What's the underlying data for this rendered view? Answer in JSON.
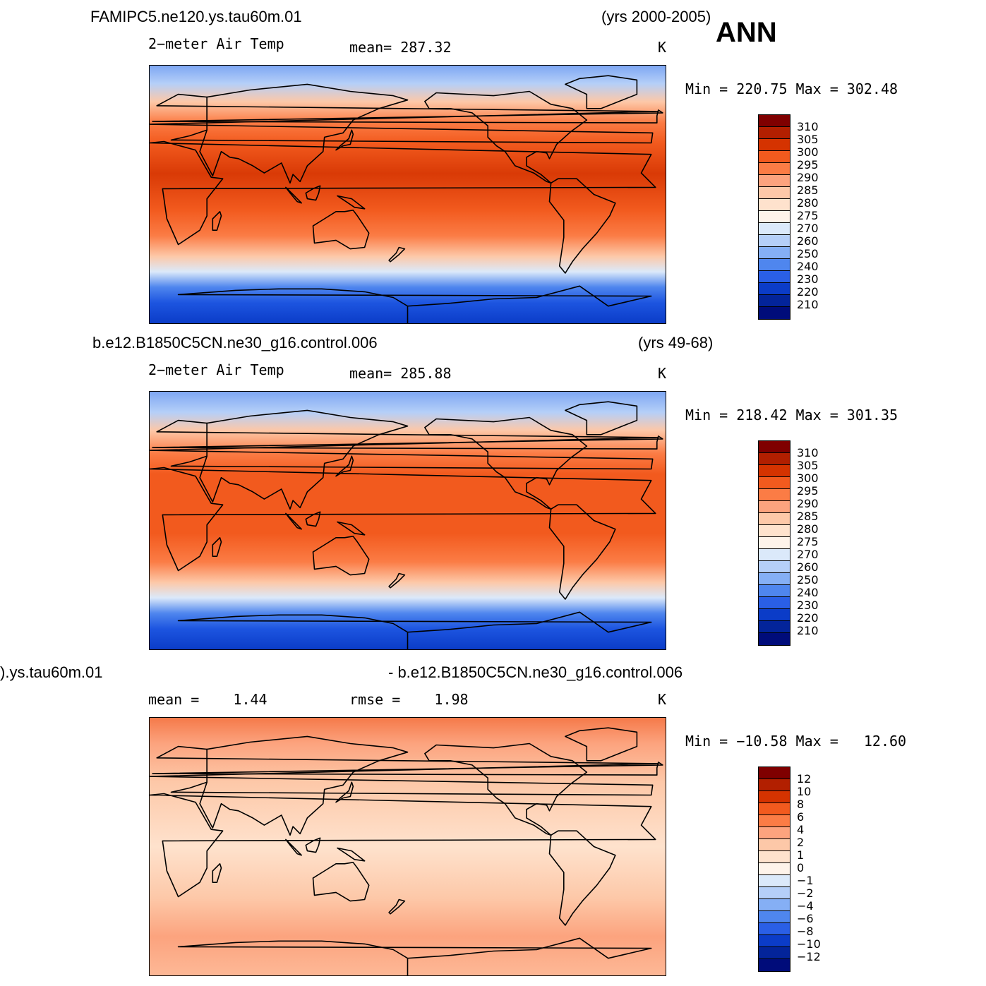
{
  "season": "ANN",
  "panels": [
    {
      "case_name": "FAMIPC5.ne120.ys.tau60m.01",
      "years": "(yrs 2000-2005)",
      "left_label": "2−meter Air Temp",
      "center_label": "mean= 287.32",
      "units": "K",
      "minmax": "Min = 220.75 Max = 302.48",
      "colorbar_labels": [
        "310",
        "305",
        "300",
        "295",
        "290",
        "285",
        "280",
        "275",
        "270",
        "260",
        "250",
        "240",
        "230",
        "220",
        "210"
      ],
      "colorbar_colors": [
        "#7f0000",
        "#b21f00",
        "#d53300",
        "#f25a1e",
        "#fb7c45",
        "#fca37e",
        "#fdc8a8",
        "#fee2cd",
        "#fef3ea",
        "#dbe9fa",
        "#b5cff8",
        "#85aff5",
        "#4f86ee",
        "#2a5fe6",
        "#0b3cc8",
        "#03249a",
        "#000c7a"
      ],
      "map_gradient": [
        {
          "offset": "0",
          "color": "#7ea7f3"
        },
        {
          "offset": "0.07",
          "color": "#b5cff8"
        },
        {
          "offset": "0.14",
          "color": "#fdc8a8"
        },
        {
          "offset": "0.22",
          "color": "#fb7c45"
        },
        {
          "offset": "0.30",
          "color": "#f25a1e"
        },
        {
          "offset": "0.42",
          "color": "#d93a06"
        },
        {
          "offset": "0.56",
          "color": "#f25a1e"
        },
        {
          "offset": "0.66",
          "color": "#fb7c45"
        },
        {
          "offset": "0.74",
          "color": "#fdc8a8"
        },
        {
          "offset": "0.80",
          "color": "#dbe9fa"
        },
        {
          "offset": "0.86",
          "color": "#4f86ee"
        },
        {
          "offset": "0.92",
          "color": "#1d55e0"
        },
        {
          "offset": "1",
          "color": "#0b3cc8"
        }
      ]
    },
    {
      "case_name": "b.e12.B1850C5CN.ne30_g16.control.006",
      "years": "(yrs 49-68)",
      "left_label": "2−meter Air Temp",
      "center_label": "mean= 285.88",
      "units": "K",
      "minmax": "Min = 218.42 Max = 301.35",
      "colorbar_labels": [
        "310",
        "305",
        "300",
        "295",
        "290",
        "285",
        "280",
        "275",
        "270",
        "260",
        "250",
        "240",
        "230",
        "220",
        "210"
      ],
      "colorbar_colors": [
        "#7f0000",
        "#b21f00",
        "#d53300",
        "#f25a1e",
        "#fb7c45",
        "#fca37e",
        "#fdc8a8",
        "#fee2cd",
        "#fef3ea",
        "#dbe9fa",
        "#b5cff8",
        "#85aff5",
        "#4f86ee",
        "#2a5fe6",
        "#0b3cc8",
        "#03249a",
        "#000c7a"
      ],
      "map_gradient": [
        {
          "offset": "0",
          "color": "#7ea7f3"
        },
        {
          "offset": "0.08",
          "color": "#b5cff8"
        },
        {
          "offset": "0.15",
          "color": "#fdc8a8"
        },
        {
          "offset": "0.24",
          "color": "#fb7c45"
        },
        {
          "offset": "0.32",
          "color": "#f25a1e"
        },
        {
          "offset": "0.55",
          "color": "#f25a1e"
        },
        {
          "offset": "0.66",
          "color": "#fb7c45"
        },
        {
          "offset": "0.74",
          "color": "#fdc8a8"
        },
        {
          "offset": "0.80",
          "color": "#dbe9fa"
        },
        {
          "offset": "0.86",
          "color": "#4f86ee"
        },
        {
          "offset": "0.92",
          "color": "#1d55e0"
        },
        {
          "offset": "1",
          "color": "#0b3cc8"
        }
      ]
    },
    {
      "case_name": ").ys.tau60m.01",
      "years": "- b.e12.B1850C5CN.ne30_g16.control.006",
      "left_label": "mean =    1.44",
      "center_label": "rmse =    1.98",
      "units": "K",
      "minmax": "Min = −10.58 Max =   12.60",
      "colorbar_labels": [
        "12",
        "10",
        "8",
        "6",
        "4",
        "2",
        "1",
        "0",
        "−1",
        "−2",
        "−4",
        "−6",
        "−8",
        "−10",
        "−12"
      ],
      "colorbar_colors": [
        "#7f0000",
        "#b21f00",
        "#d53300",
        "#f25a1e",
        "#fb7c45",
        "#fca37e",
        "#fdc8a8",
        "#fee2cd",
        "#fef3ea",
        "#dbe9fa",
        "#b5cff8",
        "#85aff5",
        "#4f86ee",
        "#2a5fe6",
        "#0b3cc8",
        "#03249a",
        "#000c7a"
      ],
      "map_gradient": [
        {
          "offset": "0",
          "color": "#f57a4a"
        },
        {
          "offset": "0.10",
          "color": "#fca37e"
        },
        {
          "offset": "0.25",
          "color": "#fdc8a8"
        },
        {
          "offset": "0.50",
          "color": "#fee2cd"
        },
        {
          "offset": "0.70",
          "color": "#fdc8a8"
        },
        {
          "offset": "0.85",
          "color": "#fca37e"
        },
        {
          "offset": "1",
          "color": "#fdb896"
        }
      ]
    }
  ]
}
